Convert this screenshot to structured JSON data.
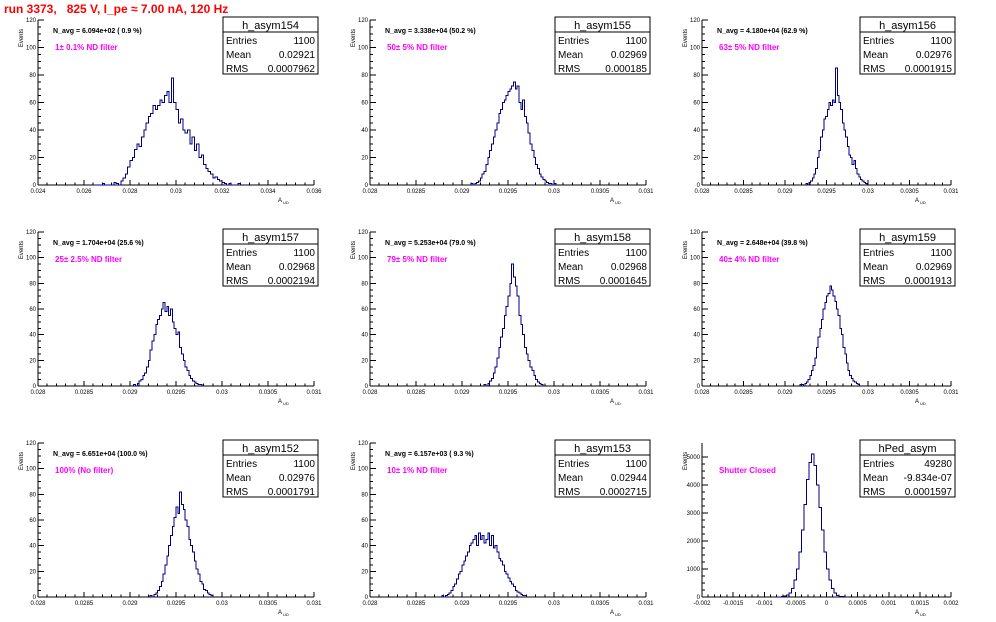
{
  "title": "run 3373,   825 V, I_pe ≈ 7.00 nA, 120 Hz",
  "stat_labels": [
    "Entries",
    "Mean",
    "RMS"
  ],
  "axis_label": "A",
  "axis_sub": "UD",
  "ylabel": "Events",
  "chart_data": [
    {
      "type": "bar",
      "name": "h_asym154",
      "navg": "N_avg = 6.094e+02 ( 0.9 %)",
      "filter": "1± 0.1% ND filter",
      "stats": {
        "entries": "1100",
        "mean": "0.02921",
        "rms": "0.0007962"
      },
      "xlim": [
        0.024,
        0.036
      ],
      "ylim": [
        0,
        120
      ],
      "xticks": [
        0.024,
        0.026,
        0.028,
        0.03,
        0.032,
        0.034,
        0.036
      ],
      "xtick_labels": [
        "0.024",
        "0.026",
        "0.028",
        "0.03",
        "0.032",
        "0.034",
        "0.036"
      ],
      "yticks": [
        0,
        20,
        40,
        60,
        80,
        100,
        120
      ],
      "ytick_labels": [
        "0",
        "20",
        "40",
        "60",
        "80",
        "100",
        "120"
      ],
      "bin_start": 0.0264,
      "bin_width": 0.0001,
      "values": [
        0,
        0,
        0,
        0,
        1,
        0,
        0,
        0,
        0,
        2,
        1,
        0,
        3,
        5,
        8,
        13,
        18,
        20,
        26,
        30,
        28,
        35,
        40,
        45,
        50,
        52,
        58,
        55,
        58,
        62,
        60,
        65,
        68,
        60,
        78,
        60,
        55,
        45,
        48,
        40,
        38,
        40,
        30,
        35,
        25,
        30,
        20,
        22,
        15,
        12,
        10,
        8,
        5,
        6,
        4,
        3,
        2,
        1,
        0,
        1,
        0,
        0,
        0,
        1
      ]
    },
    {
      "type": "bar",
      "name": "h_asym155",
      "navg": "N_avg = 3.338e+04 (50.2 %)",
      "filter": "50± 5% ND filter",
      "stats": {
        "entries": "1100",
        "mean": "0.02969",
        "rms": "0.000185"
      },
      "xlim": [
        0.028,
        0.031
      ],
      "ylim": [
        0,
        120
      ],
      "xticks": [
        0.028,
        0.0285,
        0.029,
        0.0295,
        0.03,
        0.0305,
        0.031
      ],
      "xtick_labels": [
        "0.028",
        "0.0285",
        "0.029",
        "0.0295",
        "0.03",
        "0.0305",
        "0.031"
      ],
      "yticks": [
        0,
        20,
        40,
        60,
        80,
        100,
        120
      ],
      "ytick_labels": [
        "0",
        "20",
        "40",
        "60",
        "80",
        "100",
        "120"
      ],
      "bin_start": 0.0291,
      "bin_width": 2e-05,
      "values": [
        1,
        0,
        1,
        2,
        3,
        5,
        8,
        10,
        15,
        20,
        25,
        30,
        35,
        40,
        45,
        52,
        55,
        60,
        62,
        65,
        68,
        70,
        72,
        75,
        70,
        72,
        60,
        55,
        62,
        50,
        45,
        38,
        30,
        25,
        20,
        15,
        12,
        8,
        6,
        4,
        3,
        2,
        1,
        1,
        0,
        1
      ]
    },
    {
      "type": "bar",
      "name": "h_asym156",
      "navg": "N_avg = 4.180e+04 (62.9 %)",
      "filter": "63± 5% ND filter",
      "stats": {
        "entries": "1100",
        "mean": "0.02976",
        "rms": "0.0001915"
      },
      "xlim": [
        0.028,
        0.031
      ],
      "ylim": [
        0,
        120
      ],
      "xticks": [
        0.028,
        0.0285,
        0.029,
        0.0295,
        0.03,
        0.0305,
        0.031
      ],
      "xtick_labels": [
        "0.028",
        "0.0285",
        "0.029",
        "0.0295",
        "0.03",
        "0.0305",
        "0.031"
      ],
      "yticks": [
        0,
        20,
        40,
        60,
        80,
        100,
        120
      ],
      "ytick_labels": [
        "0",
        "20",
        "40",
        "60",
        "80",
        "100",
        "120"
      ],
      "bin_start": 0.02925,
      "bin_width": 2e-05,
      "values": [
        1,
        0,
        2,
        3,
        5,
        8,
        12,
        20,
        25,
        35,
        40,
        48,
        50,
        55,
        60,
        58,
        62,
        60,
        85,
        65,
        60,
        55,
        45,
        40,
        35,
        28,
        22,
        20,
        15,
        18,
        12,
        8,
        6,
        4,
        3,
        2,
        1
      ]
    },
    {
      "type": "bar",
      "name": "h_asym157",
      "navg": "N_avg = 1.704e+04 (25.6 %)",
      "filter": "25± 2.5% ND filter",
      "stats": {
        "entries": "1100",
        "mean": "0.02968",
        "rms": "0.0002194"
      },
      "xlim": [
        0.028,
        0.031
      ],
      "ylim": [
        0,
        120
      ],
      "xticks": [
        0.028,
        0.0285,
        0.029,
        0.0295,
        0.03,
        0.0305,
        0.031
      ],
      "xtick_labels": [
        "0.028",
        "0.0285",
        "0.029",
        "0.0295",
        "0.03",
        "0.0305",
        "0.031"
      ],
      "yticks": [
        0,
        20,
        40,
        60,
        80,
        100,
        120
      ],
      "ytick_labels": [
        "0",
        "20",
        "40",
        "60",
        "80",
        "100",
        "120"
      ],
      "bin_start": 0.02904,
      "bin_width": 2e-05,
      "values": [
        1,
        0,
        2,
        4,
        5,
        8,
        10,
        15,
        20,
        28,
        35,
        40,
        48,
        52,
        55,
        60,
        65,
        58,
        62,
        55,
        60,
        50,
        45,
        40,
        42,
        30,
        25,
        20,
        15,
        12,
        8,
        6,
        4,
        3,
        2,
        1,
        1
      ]
    },
    {
      "type": "bar",
      "name": "h_asym158",
      "navg": "N_avg = 5.253e+04 (79.0 %)",
      "filter": "79± 5% ND filter",
      "stats": {
        "entries": "1100",
        "mean": "0.02968",
        "rms": "0.0001645"
      },
      "xlim": [
        0.028,
        0.031
      ],
      "ylim": [
        0,
        120
      ],
      "xticks": [
        0.028,
        0.0285,
        0.029,
        0.0295,
        0.03,
        0.0305,
        0.031
      ],
      "xtick_labels": [
        "0.028",
        "0.0285",
        "0.029",
        "0.0295",
        "0.03",
        "0.0305",
        "0.031"
      ],
      "yticks": [
        0,
        20,
        40,
        60,
        80,
        100,
        120
      ],
      "ytick_labels": [
        "0",
        "20",
        "40",
        "60",
        "80",
        "100",
        "120"
      ],
      "bin_start": 0.02924,
      "bin_width": 2e-05,
      "values": [
        1,
        0,
        2,
        4,
        6,
        10,
        15,
        22,
        30,
        38,
        45,
        55,
        62,
        70,
        80,
        95,
        85,
        78,
        70,
        55,
        48,
        40,
        30,
        25,
        20,
        15,
        12,
        8,
        5,
        3,
        2,
        1
      ]
    },
    {
      "type": "bar",
      "name": "h_asym159",
      "navg": "N_avg = 2.648e+04 (39.8 %)",
      "filter": "40± 4% ND filter",
      "stats": {
        "entries": "1100",
        "mean": "0.02969",
        "rms": "0.0001913"
      },
      "xlim": [
        0.028,
        0.031
      ],
      "ylim": [
        0,
        120
      ],
      "xticks": [
        0.028,
        0.0285,
        0.029,
        0.0295,
        0.03,
        0.0305,
        0.031
      ],
      "xtick_labels": [
        "0.028",
        "0.0285",
        "0.029",
        "0.0295",
        "0.03",
        "0.0305",
        "0.031"
      ],
      "yticks": [
        0,
        20,
        40,
        60,
        80,
        100,
        120
      ],
      "ytick_labels": [
        "0",
        "20",
        "40",
        "60",
        "80",
        "100",
        "120"
      ],
      "bin_start": 0.02918,
      "bin_width": 2e-05,
      "values": [
        1,
        1,
        0,
        2,
        3,
        5,
        8,
        12,
        16,
        22,
        30,
        38,
        45,
        52,
        60,
        65,
        70,
        72,
        78,
        75,
        70,
        66,
        60,
        55,
        45,
        40,
        30,
        25,
        18,
        12,
        8,
        6,
        4,
        3,
        2,
        1
      ]
    },
    {
      "type": "bar",
      "name": "h_asym152",
      "navg": "N_avg = 6.651e+04 (100.0 %)",
      "filter": "100% (No filter)",
      "stats": {
        "entries": "1100",
        "mean": "0.02976",
        "rms": "0.0001791"
      },
      "xlim": [
        0.028,
        0.031
      ],
      "ylim": [
        0,
        120
      ],
      "xticks": [
        0.028,
        0.0285,
        0.029,
        0.0295,
        0.03,
        0.0305,
        0.031
      ],
      "xtick_labels": [
        "0.028",
        "0.0285",
        "0.029",
        "0.0295",
        "0.03",
        "0.0305",
        "0.031"
      ],
      "yticks": [
        0,
        20,
        40,
        60,
        80,
        100,
        120
      ],
      "ytick_labels": [
        "0",
        "20",
        "40",
        "60",
        "80",
        "100",
        "120"
      ],
      "bin_start": 0.02922,
      "bin_width": 2e-05,
      "values": [
        1,
        0,
        2,
        3,
        5,
        8,
        12,
        18,
        25,
        32,
        40,
        48,
        55,
        62,
        70,
        65,
        82,
        72,
        68,
        60,
        55,
        45,
        40,
        35,
        28,
        22,
        18,
        12,
        10,
        6,
        5,
        3,
        2,
        1
      ]
    },
    {
      "type": "bar",
      "name": "h_asym153",
      "navg": "N_avg = 6.157e+03 ( 9.3 %)",
      "filter": "10± 1% ND filter",
      "stats": {
        "entries": "1100",
        "mean": "0.02944",
        "rms": "0.0002715"
      },
      "xlim": [
        0.028,
        0.031
      ],
      "ylim": [
        0,
        120
      ],
      "xticks": [
        0.028,
        0.0285,
        0.029,
        0.0295,
        0.03,
        0.0305,
        0.031
      ],
      "xtick_labels": [
        "0.028",
        "0.0285",
        "0.029",
        "0.0295",
        "0.03",
        "0.0305",
        "0.031"
      ],
      "yticks": [
        0,
        20,
        40,
        60,
        80,
        100,
        120
      ],
      "ytick_labels": [
        "0",
        "20",
        "40",
        "60",
        "80",
        "100",
        "120"
      ],
      "bin_start": 0.02878,
      "bin_width": 2e-05,
      "values": [
        1,
        0,
        1,
        2,
        3,
        5,
        8,
        10,
        14,
        18,
        20,
        25,
        28,
        32,
        35,
        40,
        42,
        45,
        48,
        40,
        50,
        45,
        48,
        42,
        45,
        50,
        40,
        48,
        38,
        40,
        35,
        30,
        28,
        25,
        20,
        18,
        15,
        12,
        10,
        8,
        5,
        4,
        3,
        2,
        1,
        1
      ]
    },
    {
      "type": "bar",
      "name": "hPed_asym",
      "navg": "",
      "filter": "Shutter Closed",
      "stats": {
        "entries": "49280",
        "mean": "-9.834e-07",
        "rms": "0.0001597"
      },
      "xlim": [
        -0.002,
        0.002
      ],
      "ylim": [
        0,
        5500
      ],
      "xticks": [
        -0.002,
        -0.0015,
        -0.001,
        -0.0005,
        0,
        0.0005,
        0.001,
        0.0015,
        0.002
      ],
      "xtick_labels": [
        "-0.002",
        "-0.0015",
        "-0.001",
        "-0.0005",
        "0",
        "0.0005",
        "0.001",
        "0.0015",
        "0.002"
      ],
      "yticks": [
        0,
        1000,
        2000,
        3000,
        4000,
        5000
      ],
      "ytick_labels": [
        "0",
        "1000",
        "2000",
        "3000",
        "4000",
        "5000"
      ],
      "bin_start": -0.0008,
      "bin_width": 4e-05,
      "values": [
        2,
        5,
        10,
        30,
        70,
        150,
        300,
        600,
        1000,
        1600,
        2400,
        3300,
        4200,
        4800,
        5100,
        4700,
        4000,
        3200,
        2400,
        1600,
        1000,
        600,
        300,
        150,
        60,
        25,
        10,
        4
      ]
    }
  ]
}
